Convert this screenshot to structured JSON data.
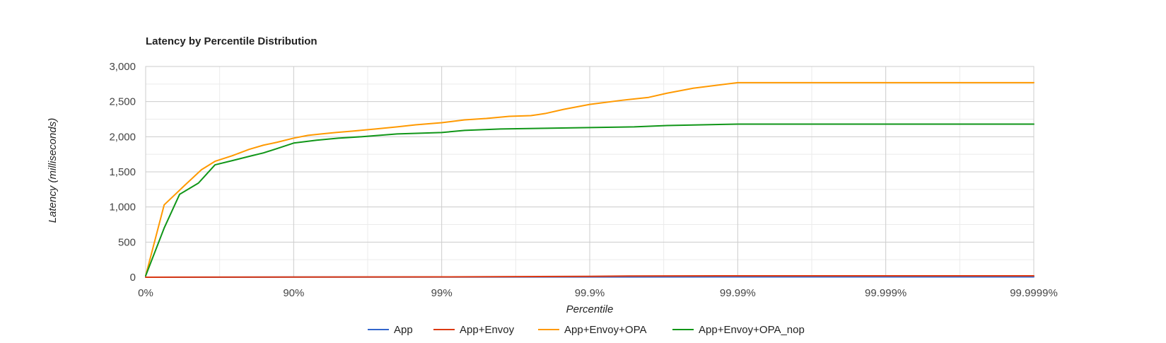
{
  "chart_data": {
    "type": "line",
    "title": "Latency by Percentile Distribution",
    "xlabel": "Percentile",
    "ylabel": "Latency (milliseconds)",
    "x_scale": "log-percentile",
    "x_ticks": [
      "0%",
      "90%",
      "99%",
      "99.9%",
      "99.99%",
      "99.999%",
      "99.9999%"
    ],
    "y_ticks": [
      "0",
      "500",
      "1,000",
      "1,500",
      "2,000",
      "2,500",
      "3,000"
    ],
    "ylim": [
      0,
      3000
    ],
    "grid": true,
    "legend_position": "bottom",
    "series": [
      {
        "name": "App",
        "color": "#3366cc",
        "points": [
          [
            "0%",
            0
          ],
          [
            "90%",
            2
          ],
          [
            "99%",
            3
          ],
          [
            "99.9%",
            4
          ],
          [
            "99.99%",
            5
          ],
          [
            "99.999%",
            5
          ],
          [
            "99.9999%",
            5
          ]
        ]
      },
      {
        "name": "App+Envoy",
        "color": "#dc3912",
        "points": [
          [
            "0%",
            0
          ],
          [
            "90%",
            3
          ],
          [
            "99%",
            5
          ],
          [
            "99.9%",
            12
          ],
          [
            "99.95%",
            18
          ],
          [
            "99.99%",
            20
          ],
          [
            "99.999%",
            20
          ],
          [
            "99.9999%",
            20
          ]
        ]
      },
      {
        "name": "App+Envoy+OPA",
        "color": "#ff9900",
        "points": [
          [
            "0%",
            20
          ],
          [
            "25%",
            1030
          ],
          [
            "45%",
            1300
          ],
          [
            "58%",
            1530
          ],
          [
            "66%",
            1650
          ],
          [
            "74%",
            1730
          ],
          [
            "80%",
            1820
          ],
          [
            "84%",
            1880
          ],
          [
            "87%",
            1920
          ],
          [
            "90%",
            1980
          ],
          [
            "92%",
            2020
          ],
          [
            "93.5%",
            2040
          ],
          [
            "94.8%",
            2060
          ],
          [
            "96%",
            2080
          ],
          [
            "97.2%",
            2110
          ],
          [
            "98%",
            2140
          ],
          [
            "98.5%",
            2170
          ],
          [
            "99%",
            2200
          ],
          [
            "99.3%",
            2240
          ],
          [
            "99.5%",
            2260
          ],
          [
            "99.65%",
            2290
          ],
          [
            "99.75%",
            2300
          ],
          [
            "99.8%",
            2330
          ],
          [
            "99.85%",
            2390
          ],
          [
            "99.9%",
            2460
          ],
          [
            "99.94%",
            2520
          ],
          [
            "99.96%",
            2560
          ],
          [
            "99.97%",
            2620
          ],
          [
            "99.98%",
            2690
          ],
          [
            "99.99%",
            2770
          ],
          [
            "99.999%",
            2770
          ],
          [
            "99.9999%",
            2770
          ]
        ]
      },
      {
        "name": "App+Envoy+OPA_nop",
        "color": "#109618",
        "points": [
          [
            "0%",
            20
          ],
          [
            "25%",
            700
          ],
          [
            "41%",
            1180
          ],
          [
            "56%",
            1340
          ],
          [
            "66%",
            1600
          ],
          [
            "74%",
            1660
          ],
          [
            "80%",
            1720
          ],
          [
            "84%",
            1770
          ],
          [
            "87%",
            1830
          ],
          [
            "90%",
            1910
          ],
          [
            "93%",
            1950
          ],
          [
            "95%",
            1980
          ],
          [
            "96.5%",
            2000
          ],
          [
            "98%",
            2040
          ],
          [
            "99%",
            2060
          ],
          [
            "99.3%",
            2090
          ],
          [
            "99.6%",
            2110
          ],
          [
            "99.8%",
            2120
          ],
          [
            "99.9%",
            2130
          ],
          [
            "99.95%",
            2140
          ],
          [
            "99.97%",
            2160
          ],
          [
            "99.99%",
            2180
          ],
          [
            "99.999%",
            2180
          ],
          [
            "99.9999%",
            2180
          ]
        ]
      }
    ]
  }
}
